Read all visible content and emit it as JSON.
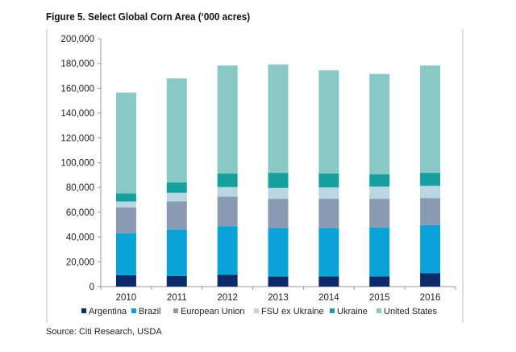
{
  "chart_data": {
    "type": "bar",
    "stacked": true,
    "title": "Figure 5. Select Global Corn Area (‘000 acres)",
    "source": "Source: Citi Research, USDA",
    "xlabel": "",
    "ylabel": "",
    "ylim": [
      0,
      200000
    ],
    "yticks": [
      0,
      20000,
      40000,
      60000,
      80000,
      100000,
      120000,
      140000,
      160000,
      180000,
      200000
    ],
    "ytick_labels": [
      "0",
      "20,000",
      "40,000",
      "60,000",
      "80,000",
      "100,000",
      "120,000",
      "140,000",
      "160,000",
      "180,000",
      "200,000"
    ],
    "categories": [
      "2010",
      "2011",
      "2012",
      "2013",
      "2014",
      "2015",
      "2016"
    ],
    "legend_position": "bottom",
    "series": [
      {
        "name": "Argentina",
        "color": "#0d2a6b",
        "values": [
          9200,
          8500,
          9600,
          8100,
          8300,
          8300,
          10900
        ]
      },
      {
        "name": "Brazil",
        "color": "#0aa3d8",
        "values": [
          34000,
          37500,
          39000,
          39200,
          39000,
          39500,
          38800
        ]
      },
      {
        "name": "European Union",
        "color": "#8a9ab2",
        "values": [
          20700,
          22700,
          24000,
          23600,
          23600,
          23100,
          21800
        ]
      },
      {
        "name": "FSU ex Ukraine",
        "color": "#b9d6e1",
        "values": [
          4800,
          7000,
          7700,
          8700,
          9100,
          9800,
          9900
        ]
      },
      {
        "name": "Ukraine",
        "color": "#169f9f",
        "values": [
          6500,
          8300,
          10900,
          12200,
          11200,
          10000,
          10400
        ]
      },
      {
        "name": "United States",
        "color": "#88c9c6",
        "values": [
          81400,
          84000,
          87200,
          87500,
          83300,
          80900,
          86600
        ]
      }
    ]
  }
}
